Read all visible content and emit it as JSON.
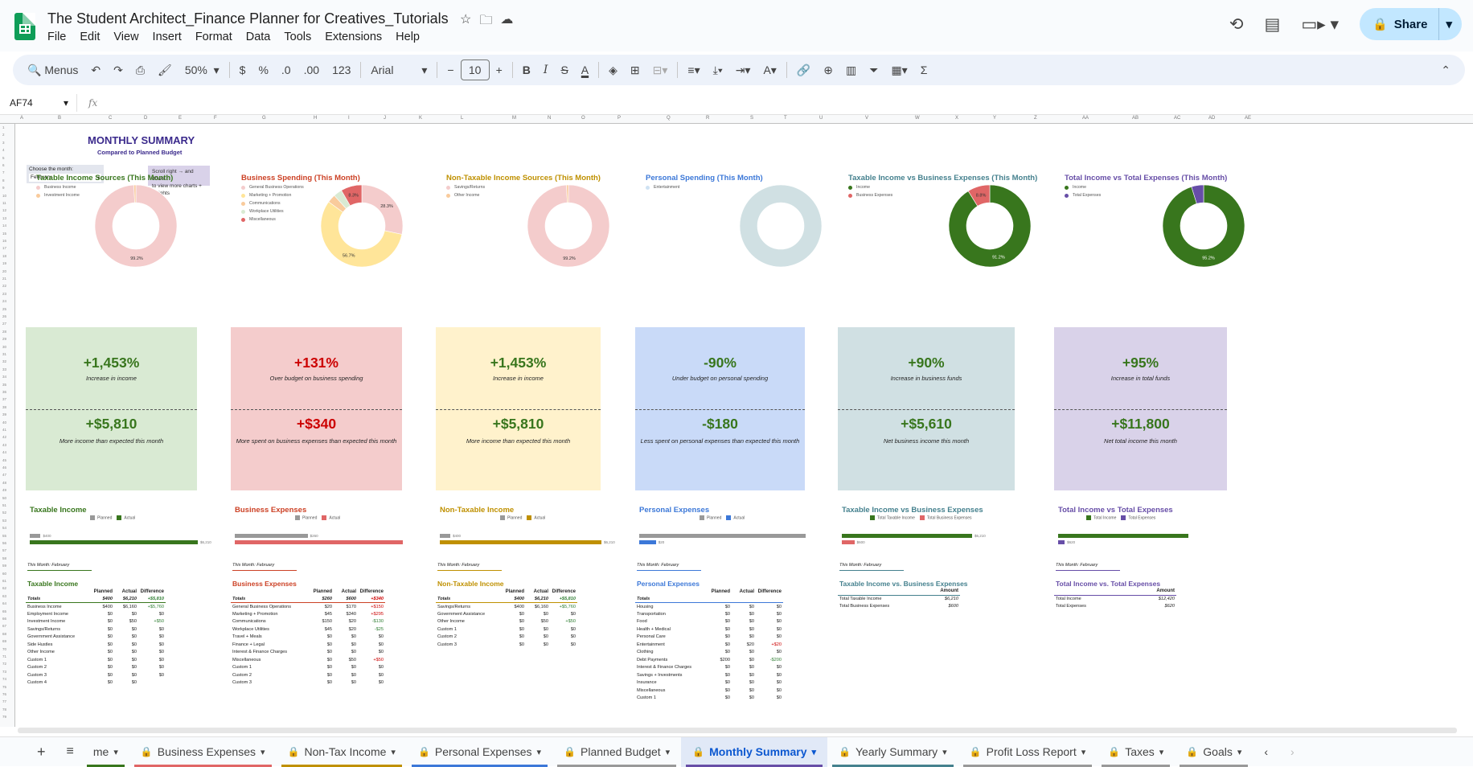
{
  "app": {
    "title": "The Student Architect_Finance Planner for Creatives_Tutorials",
    "menu": [
      "File",
      "Edit",
      "View",
      "Insert",
      "Format",
      "Data",
      "Tools",
      "Extensions",
      "Help"
    ],
    "share_label": "Share"
  },
  "toolbar": {
    "search_label": "Menus",
    "zoom": "50%",
    "currency": "$",
    "percent": "%",
    "dec_decrease": ".0",
    "dec_increase": ".00",
    "number_format": "123",
    "font": "Arial",
    "font_size": "10"
  },
  "formula_bar": {
    "cell": "AF74",
    "fx": "fx",
    "content": ""
  },
  "column_headers": [
    "A",
    "B",
    "C",
    "D",
    "E",
    "F",
    "G",
    "H",
    "I",
    "J",
    "K",
    "L",
    "M",
    "N",
    "O",
    "P",
    "Q",
    "R",
    "S",
    "T",
    "U",
    "V",
    "W",
    "X",
    "Y",
    "Z",
    "AA",
    "AB",
    "AC",
    "AD",
    "AE"
  ],
  "summary": {
    "title": "MONTHLY SUMMARY",
    "subtitle": "Compared to Planned Budget",
    "month_label": "Choose the month:",
    "month_value": "February",
    "scroll_note_1": "Scroll right →   and down ↓",
    "scroll_note_2": "to view more charts + insights"
  },
  "donuts": [
    {
      "title": "Taxable Income Sources (This Month)",
      "color": "#38761d",
      "legend": [
        "Business Income",
        "Investment Income"
      ],
      "legend_colors": [
        "#f4cccc",
        "#f9cb9c"
      ],
      "slices": [
        99.2,
        0.8
      ],
      "slice_colors": [
        "#f4cccc",
        "#f9cb9c"
      ],
      "labels": [
        "99.2%"
      ]
    },
    {
      "title": "Business Spending (This Month)",
      "color": "#cc4125",
      "legend": [
        "General Business Operations",
        "Marketing + Promotion",
        "Communications",
        "Workplace Utilities",
        "Miscellaneous"
      ],
      "legend_colors": [
        "#f4cccc",
        "#ffe599",
        "#f9cb9c",
        "#d9ead3",
        "#e06666"
      ],
      "slices": [
        28.3,
        56.7,
        3.3,
        3.4,
        8.3
      ],
      "slice_colors": [
        "#f4cccc",
        "#ffe599",
        "#f9cb9c",
        "#d9ead3",
        "#e06666"
      ],
      "labels": [
        "28.3%",
        "56.7%",
        "8.3%"
      ]
    },
    {
      "title": "Non-Taxable Income Sources (This Month)",
      "color": "#bf9000",
      "legend": [
        "Savings/Returns",
        "Other Income"
      ],
      "legend_colors": [
        "#f4cccc",
        "#f9cb9c"
      ],
      "slices": [
        99.2,
        0.8
      ],
      "slice_colors": [
        "#f4cccc",
        "#f9cb9c"
      ],
      "labels": [
        "99.2%"
      ]
    },
    {
      "title": "Personal Spending (This Month)",
      "color": "#3c78d8",
      "legend": [
        "Entertainment"
      ],
      "legend_colors": [
        "#cfe2f3"
      ],
      "slices": [
        100
      ],
      "slice_colors": [
        "#d0e0e3"
      ],
      "labels": []
    },
    {
      "title": "Taxable Income vs Business Expenses (This Month)",
      "color": "#45818e",
      "legend": [
        "Income",
        "Business Expenses"
      ],
      "legend_colors": [
        "#38761d",
        "#e06666"
      ],
      "slices": [
        91.2,
        8.8
      ],
      "slice_colors": [
        "#38761d",
        "#e06666"
      ],
      "labels": [
        "91.2%",
        "8.8%"
      ]
    },
    {
      "title": "Total Income vs Total Expenses (This Month)",
      "color": "#674ea7",
      "legend": [
        "Income",
        "Total Expenses"
      ],
      "legend_colors": [
        "#38761d",
        "#674ea7"
      ],
      "slices": [
        95.2,
        4.8
      ],
      "slice_colors": [
        "#38761d",
        "#674ea7"
      ],
      "labels": [
        "95.2%"
      ]
    }
  ],
  "cards": [
    {
      "bg": "#d9ead3",
      "color": "#38761d",
      "pct": "+1,453%",
      "pct_text": "Increase in income",
      "amt": "+$5,810",
      "amt_text": "More income than expected this month"
    },
    {
      "bg": "#f4cccc",
      "color": "#cc0000",
      "pct": "+131%",
      "pct_text": "Over budget on business spending",
      "amt": "+$340",
      "amt_text": "More spent on business expenses than expected this month"
    },
    {
      "bg": "#fff2cc",
      "color": "#38761d",
      "pct": "+1,453%",
      "pct_text": "Increase in income",
      "amt": "+$5,810",
      "amt_text": "More income than expected this month"
    },
    {
      "bg": "#c9daf8",
      "color": "#38761d",
      "pct": "-90%",
      "pct_text": "Under budget on personal spending",
      "amt": "-$180",
      "amt_text": "Less spent on personal expenses than expected this month"
    },
    {
      "bg": "#d0e0e3",
      "color": "#38761d",
      "pct": "+90%",
      "pct_text": "Increase in business funds",
      "amt": "+$5,610",
      "amt_text": "Net business income this month"
    },
    {
      "bg": "#d9d2e9",
      "color": "#38761d",
      "pct": "+95%",
      "pct_text": "Increase in total funds",
      "amt": "+$11,800",
      "amt_text": "Net total income this month"
    }
  ],
  "bars": [
    {
      "title": "Taxable Income",
      "color": "#38761d",
      "legend": [
        "Planned",
        "Actual"
      ],
      "legend_colors": [
        "#999999",
        "#38761d"
      ],
      "v1": 400,
      "v2": 6210,
      "max": 6210,
      "l1": "$400",
      "l2": "$6,210"
    },
    {
      "title": "Business Expenses",
      "color": "#cc4125",
      "legend": [
        "Planned",
        "Actual"
      ],
      "legend_colors": [
        "#999999",
        "#e06666"
      ],
      "v1": 260,
      "v2": 600,
      "max": 600,
      "l1": "$260",
      "l2": ""
    },
    {
      "title": "Non-Taxable Income",
      "color": "#bf9000",
      "legend": [
        "Planned",
        "Actual"
      ],
      "legend_colors": [
        "#999999",
        "#bf9000"
      ],
      "v1": 400,
      "v2": 6210,
      "max": 6210,
      "l1": "$400",
      "l2": "$6,210"
    },
    {
      "title": "Personal Expenses",
      "color": "#3c78d8",
      "legend": [
        "Planned",
        "Actual"
      ],
      "legend_colors": [
        "#999999",
        "#3c78d8"
      ],
      "v1": 200,
      "v2": 20,
      "max": 200,
      "l1": "",
      "l2": "$20"
    },
    {
      "title": "Taxable Income vs Business Expenses",
      "color": "#45818e",
      "legend": [
        "Total Taxable Income",
        "Total Business Expenses"
      ],
      "legend_colors": [
        "#38761d",
        "#e06666"
      ],
      "v1": 6210,
      "v2": 600,
      "max": 6210,
      "l1": "$6,210",
      "l2": "$600"
    },
    {
      "title": "Total Income vs Total Expenses",
      "color": "#674ea7",
      "legend": [
        "Total Income",
        "Total Expenses"
      ],
      "legend_colors": [
        "#38761d",
        "#674ea7"
      ],
      "v1": 12420,
      "v2": 620,
      "max": 12420,
      "l1": "",
      "l2": "$620"
    }
  ],
  "this_month": "This Month: February",
  "tables": [
    {
      "title": "Taxable Income",
      "color": "#38761d",
      "headers": [
        "",
        "Planned",
        "Actual",
        "Difference"
      ],
      "totals": [
        "Totals",
        "$400",
        "$6,210",
        "+$5,810"
      ],
      "rows": [
        [
          "Business Income",
          "$400",
          "$6,160",
          "+$5,760"
        ],
        [
          "Employment Income",
          "$0",
          "$0",
          "$0"
        ],
        [
          "Investment Income",
          "$0",
          "$50",
          "+$50"
        ],
        [
          "Savings/Returns",
          "$0",
          "$0",
          "$0"
        ],
        [
          "Government Assistance",
          "$0",
          "$0",
          "$0"
        ],
        [
          "Side Hustles",
          "$0",
          "$0",
          "$0"
        ],
        [
          "Other Income",
          "$0",
          "$0",
          "$0"
        ],
        [
          "Custom 1",
          "$0",
          "$0",
          "$0"
        ],
        [
          "Custom 2",
          "$0",
          "$0",
          "$0"
        ],
        [
          "Custom 3",
          "$0",
          "$0",
          "$0"
        ],
        [
          "Custom 4",
          "$0",
          "$0",
          ""
        ]
      ]
    },
    {
      "title": "Business Expenses",
      "color": "#cc4125",
      "headers": [
        "",
        "Planned",
        "Actual",
        "Difference"
      ],
      "totals": [
        "Totals",
        "$260",
        "$600",
        "+$340"
      ],
      "rows": [
        [
          "General Business Operations",
          "$20",
          "$170",
          "+$150"
        ],
        [
          "Marketing + Promotion",
          "$45",
          "$340",
          "+$295"
        ],
        [
          "Communications",
          "$150",
          "$20",
          "-$130"
        ],
        [
          "Workplace Utilities",
          "$45",
          "$20",
          "-$25"
        ],
        [
          "Travel + Meals",
          "$0",
          "$0",
          "$0"
        ],
        [
          "Finance + Legal",
          "$0",
          "$0",
          "$0"
        ],
        [
          "Interest & Finance Charges",
          "$0",
          "$0",
          "$0"
        ],
        [
          "Miscellaneous",
          "$0",
          "$50",
          "+$50"
        ],
        [
          "Custom 1",
          "$0",
          "$0",
          "$0"
        ],
        [
          "Custom 2",
          "$0",
          "$0",
          "$0"
        ],
        [
          "Custom 3",
          "$0",
          "$0",
          "$0"
        ]
      ]
    },
    {
      "title": "Non-Taxable Income",
      "color": "#bf9000",
      "headers": [
        "",
        "Planned",
        "Actual",
        "Difference"
      ],
      "totals": [
        "Totals",
        "$400",
        "$6,210",
        "+$5,810"
      ],
      "rows": [
        [
          "Savings/Returns",
          "$400",
          "$6,160",
          "+$5,760"
        ],
        [
          "Government Assistance",
          "$0",
          "$0",
          "$0"
        ],
        [
          "Other Income",
          "$0",
          "$50",
          "+$50"
        ],
        [
          "Custom 1",
          "$0",
          "$0",
          "$0"
        ],
        [
          "Custom 2",
          "$0",
          "$0",
          "$0"
        ],
        [
          "Custom 3",
          "$0",
          "$0",
          "$0"
        ]
      ]
    },
    {
      "title": "Personal Expenses",
      "color": "#3c78d8",
      "headers": [
        "",
        "Planned",
        "Actual",
        "Difference"
      ],
      "totals": [
        "Totals",
        "",
        "",
        ""
      ],
      "rows": [
        [
          "Housing",
          "$0",
          "$0",
          "$0"
        ],
        [
          "Transportation",
          "$0",
          "$0",
          "$0"
        ],
        [
          "Food",
          "$0",
          "$0",
          "$0"
        ],
        [
          "Health + Medical",
          "$0",
          "$0",
          "$0"
        ],
        [
          "Personal Care",
          "$0",
          "$0",
          "$0"
        ],
        [
          "Entertainment",
          "$0",
          "$20",
          "+$20"
        ],
        [
          "Clothing",
          "$0",
          "$0",
          "$0"
        ],
        [
          "Debt Payments",
          "$200",
          "$0",
          "-$200"
        ],
        [
          "Interest & Finance Charges",
          "$0",
          "$0",
          "$0"
        ],
        [
          "Savings + Investments",
          "$0",
          "$0",
          "$0"
        ],
        [
          "Insurance",
          "$0",
          "$0",
          "$0"
        ],
        [
          "Miscellaneous",
          "$0",
          "$0",
          "$0"
        ],
        [
          "Custom 1",
          "$0",
          "$0",
          "$0"
        ]
      ]
    },
    {
      "title": "Taxable Income vs. Business Expenses",
      "color": "#45818e",
      "headers": [
        "",
        "Amount"
      ],
      "totals": null,
      "rows": [
        [
          "Total Taxable Income",
          "$6,210"
        ],
        [
          "Total Business Expenses",
          "$600"
        ]
      ]
    },
    {
      "title": "Total Income vs. Total Expenses",
      "color": "#674ea7",
      "headers": [
        "",
        "Amount"
      ],
      "totals": null,
      "rows": [
        [
          "Total Income",
          "$12,420"
        ],
        [
          "Total Expenses",
          "$620"
        ]
      ]
    }
  ],
  "sheet_tabs": [
    {
      "label": "me",
      "color": "#38761d",
      "lock": false,
      "active": false
    },
    {
      "label": "Business Expenses",
      "color": "#e06666",
      "lock": true,
      "active": false
    },
    {
      "label": "Non-Tax Income",
      "color": "#bf9000",
      "lock": true,
      "active": false
    },
    {
      "label": "Personal Expenses",
      "color": "#3c78d8",
      "lock": true,
      "active": false
    },
    {
      "label": "Planned Budget",
      "color": "#999999",
      "lock": true,
      "active": false
    },
    {
      "label": "Monthly Summary",
      "color": "#674ea7",
      "lock": true,
      "active": true
    },
    {
      "label": "Yearly Summary",
      "color": "#45818e",
      "lock": true,
      "active": false
    },
    {
      "label": "Profit Loss Report",
      "color": "#999999",
      "lock": true,
      "active": false
    },
    {
      "label": "Taxes",
      "color": "#999999",
      "lock": true,
      "active": false
    },
    {
      "label": "Goals",
      "color": "#999999",
      "lock": true,
      "active": false
    }
  ]
}
